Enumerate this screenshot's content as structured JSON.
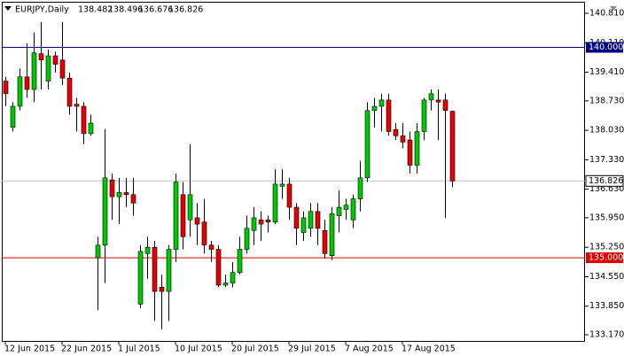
{
  "chart_data": {
    "type": "candlestick",
    "title": "EURJPY,Daily",
    "categories": [
      "12 Jun 2015",
      null,
      null,
      null,
      null,
      null,
      null,
      null,
      "22 Jun 2015",
      null,
      null,
      null,
      null,
      null,
      null,
      null,
      "1 Jul 2015",
      null,
      null,
      null,
      null,
      null,
      null,
      null,
      "10 Jul 2015",
      null,
      null,
      null,
      null,
      null,
      null,
      null,
      "20 Jul 2015",
      null,
      null,
      null,
      null,
      null,
      null,
      null,
      "29 Jul 2015",
      null,
      null,
      null,
      null,
      null,
      null,
      null,
      "7 Aug 2015",
      null,
      null,
      null,
      null,
      null,
      null,
      null,
      "17 Aug 2015",
      null,
      null,
      null,
      null,
      null,
      null,
      null
    ],
    "open": [
      139.2,
      138.1,
      138.6,
      139.3,
      139.0,
      139.85,
      139.2,
      139.8,
      139.7,
      139.27,
      138.65,
      138.6,
      137.95,
      135.0,
      135.3,
      136.85,
      136.45,
      136.55,
      136.5,
      133.9,
      135.1,
      135.25,
      134.3,
      134.2,
      135.2,
      136.5,
      135.9,
      135.95,
      135.85,
      135.3,
      135.2,
      134.35,
      134.4,
      134.65,
      135.2,
      135.65,
      135.9,
      135.9,
      135.85,
      136.7,
      136.75,
      136.2,
      135.6,
      135.7,
      136.1,
      135.65,
      135.05,
      136.0,
      136.15,
      135.9,
      136.4,
      136.9,
      138.5,
      138.6,
      138.75,
      138.05,
      137.9,
      137.8,
      137.2,
      138.0,
      138.75,
      138.75,
      138.75,
      138.482
    ],
    "high": [
      139.3,
      138.7,
      139.5,
      140.1,
      140.35,
      140.6,
      139.95,
      139.9,
      140.6,
      139.4,
      138.8,
      138.7,
      138.4,
      135.5,
      138.05,
      137.0,
      136.9,
      136.9,
      136.9,
      135.3,
      135.5,
      135.4,
      134.6,
      135.3,
      137.0,
      136.8,
      137.7,
      136.3,
      136.4,
      135.4,
      135.3,
      134.6,
      134.9,
      135.5,
      136.0,
      136.2,
      136.1,
      136.0,
      137.1,
      137.1,
      136.9,
      136.3,
      136.1,
      136.3,
      136.3,
      135.9,
      136.2,
      136.6,
      136.4,
      136.5,
      137.3,
      138.7,
      138.8,
      138.9,
      138.9,
      138.2,
      138.2,
      138.0,
      138.2,
      138.8,
      139.0,
      139.0,
      138.9,
      138.496
    ],
    "low": [
      138.6,
      138.0,
      138.5,
      138.8,
      138.7,
      139.0,
      139.0,
      139.4,
      139.1,
      138.4,
      138.0,
      137.7,
      137.9,
      133.76,
      134.4,
      135.9,
      135.8,
      136.2,
      136.0,
      133.8,
      134.5,
      133.5,
      133.3,
      133.5,
      134.9,
      135.2,
      135.5,
      135.3,
      135.1,
      134.9,
      134.3,
      134.3,
      134.3,
      134.6,
      135.1,
      135.3,
      135.4,
      135.6,
      135.8,
      136.4,
      135.9,
      135.3,
      135.4,
      135.5,
      135.3,
      134.98,
      134.95,
      135.6,
      135.9,
      135.7,
      136.1,
      136.8,
      138.1,
      138.0,
      137.9,
      137.8,
      137.6,
      137.0,
      137.0,
      137.8,
      138.5,
      137.8,
      135.95,
      136.676
    ],
    "close": [
      138.9,
      138.6,
      139.3,
      139.0,
      139.87,
      139.7,
      139.8,
      139.6,
      139.27,
      138.6,
      138.6,
      137.95,
      138.2,
      135.3,
      136.9,
      136.45,
      136.55,
      136.5,
      136.3,
      135.15,
      135.25,
      134.2,
      134.2,
      135.2,
      136.8,
      135.5,
      136.5,
      135.8,
      135.3,
      135.2,
      134.35,
      134.4,
      134.65,
      135.2,
      135.7,
      135.95,
      135.8,
      135.85,
      136.75,
      136.75,
      136.2,
      135.7,
      135.95,
      136.1,
      135.7,
      135.1,
      136.05,
      136.2,
      136.25,
      136.4,
      136.9,
      138.5,
      138.6,
      138.75,
      138.0,
      137.9,
      137.75,
      137.2,
      138.0,
      138.75,
      138.9,
      138.7,
      138.5,
      136.826
    ],
    "up_color": "#00c800",
    "down_color": "#e80000",
    "ylim": [
      133.023,
      141.084
    ],
    "yticks": [
      {
        "value": 140.81,
        "label": "140.810"
      },
      {
        "value": 140.11,
        "label": "140.110"
      },
      {
        "value": 139.41,
        "label": "139.410"
      },
      {
        "value": 138.73,
        "label": "138.730"
      },
      {
        "value": 138.03,
        "label": "138.030"
      },
      {
        "value": 137.33,
        "label": "137.330"
      },
      {
        "value": 136.63,
        "label": "136.630"
      },
      {
        "value": 135.95,
        "label": "135.950"
      },
      {
        "value": 135.25,
        "label": "135.250"
      },
      {
        "value": 134.55,
        "label": "134.550"
      },
      {
        "value": 133.85,
        "label": "133.850"
      },
      {
        "value": 133.17,
        "label": "133.170"
      }
    ],
    "hlines": [
      {
        "value": 140,
        "label": "140.000",
        "color": "#000080"
      },
      {
        "value": 135,
        "label": "135.000",
        "color": "#e00000"
      }
    ],
    "grid": false
  }
}
